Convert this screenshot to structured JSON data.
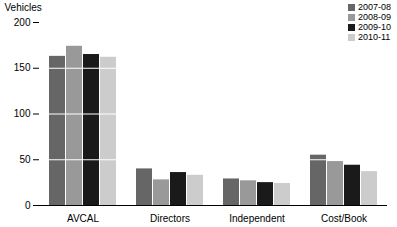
{
  "chart_data": {
    "type": "bar",
    "categories": [
      "AVCAL",
      "Directors",
      "Independent",
      "Cost/Book"
    ],
    "y_label": "Vehicles",
    "series": [
      {
        "name": "2007-08",
        "color": "#666666",
        "values": [
          163,
          40,
          29,
          55
        ]
      },
      {
        "name": "2008-09",
        "color": "#999999",
        "values": [
          174,
          28,
          27,
          48
        ]
      },
      {
        "name": "2009-10",
        "color": "#1a1a1a",
        "values": [
          165,
          36,
          25,
          44
        ]
      },
      {
        "name": "2010-11",
        "color": "#cccccc",
        "values": [
          162,
          33,
          24,
          37
        ]
      }
    ],
    "ylim": [
      0,
      200
    ],
    "yticks": [
      0,
      50,
      100,
      150,
      200
    ],
    "grid": true,
    "legend": "top-right"
  }
}
